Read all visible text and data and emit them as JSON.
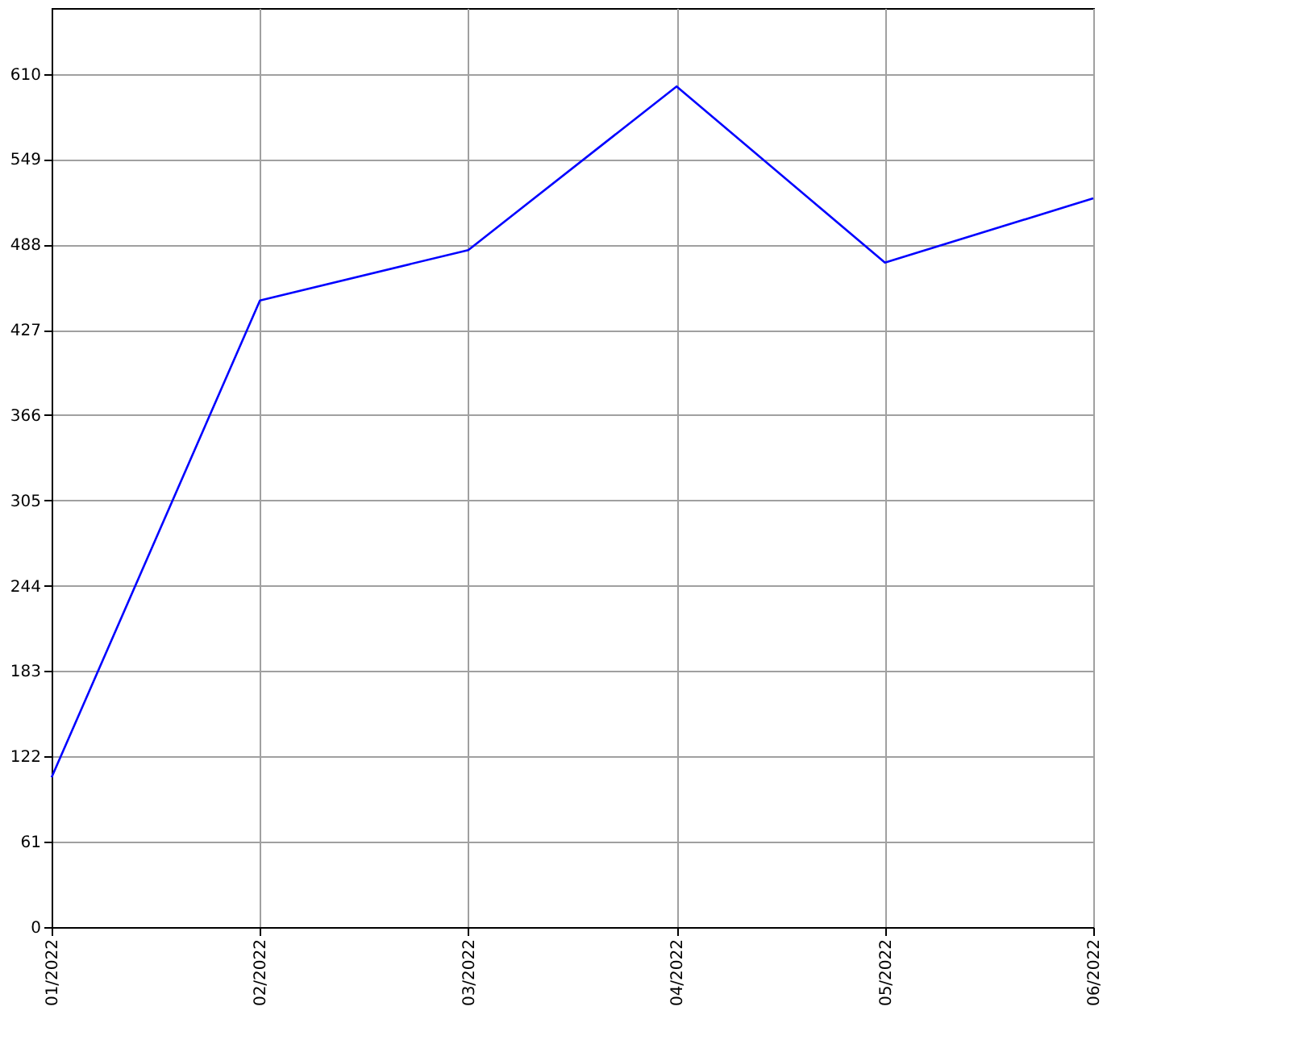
{
  "chart_data": {
    "type": "line",
    "categories": [
      "01/2022",
      "02/2022",
      "03/2022",
      "04/2022",
      "05/2022",
      "06/2022"
    ],
    "series": [
      {
        "color": "#0000ff",
        "values": [
          107,
          448,
          484,
          601,
          475,
          521
        ]
      }
    ],
    "ylim": [
      0,
      657
    ],
    "yticks": [
      0,
      61,
      122,
      183,
      244,
      305,
      366,
      427,
      488,
      549,
      610
    ],
    "grid": true,
    "marker": "none",
    "line_style": "solid"
  }
}
